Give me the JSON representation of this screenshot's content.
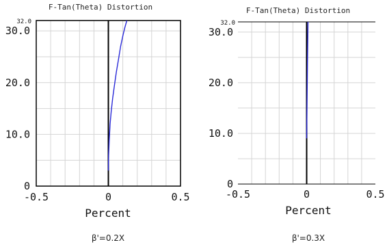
{
  "chart_data": [
    {
      "type": "line",
      "title": "F-Tan(Theta) Distortion",
      "xlabel": "Percent",
      "ylabel": "",
      "xlim": [
        -0.5,
        0.5
      ],
      "ylim": [
        0,
        32.0
      ],
      "x_ticks": [
        "-0.5",
        "0",
        "0.5"
      ],
      "y_ticks": [
        "0",
        "10.0",
        "20.0",
        "30.0"
      ],
      "y_max_label": "32.0",
      "grid": true,
      "caption": "β'=0.2X",
      "series": [
        {
          "x": [
            0.0,
            0.002,
            0.006,
            0.012,
            0.02,
            0.03,
            0.042,
            0.055,
            0.07,
            0.085,
            0.1,
            0.113,
            0.128
          ],
          "y": [
            3.0,
            6.0,
            9.0,
            12.0,
            14.5,
            17.0,
            19.5,
            22.0,
            24.5,
            27.0,
            29.0,
            30.5,
            32.0
          ]
        }
      ],
      "colors": {
        "series": "#2a2ad8",
        "grid": "#d4d4d4",
        "axis": "#000000"
      }
    },
    {
      "type": "line",
      "title": "F-Tan(Theta) Distortion",
      "xlabel": "Percent",
      "ylabel": "",
      "xlim": [
        -0.5,
        0.5
      ],
      "ylim": [
        0,
        32.0
      ],
      "x_ticks": [
        "-0.5",
        "0",
        "0.5"
      ],
      "y_ticks": [
        "0",
        "10.0",
        "20.0",
        "30.0"
      ],
      "y_max_label": "32.0",
      "grid": true,
      "caption": "β'=0.3X",
      "series": [
        {
          "x": [
            0.0,
            0.002,
            0.004,
            0.006,
            0.008,
            0.01
          ],
          "y": [
            9.0,
            14.0,
            19.0,
            24.0,
            28.0,
            32.0
          ]
        }
      ],
      "colors": {
        "series": "#2a2ad8",
        "grid": "#d4d4d4",
        "axis": "#000000"
      }
    }
  ]
}
